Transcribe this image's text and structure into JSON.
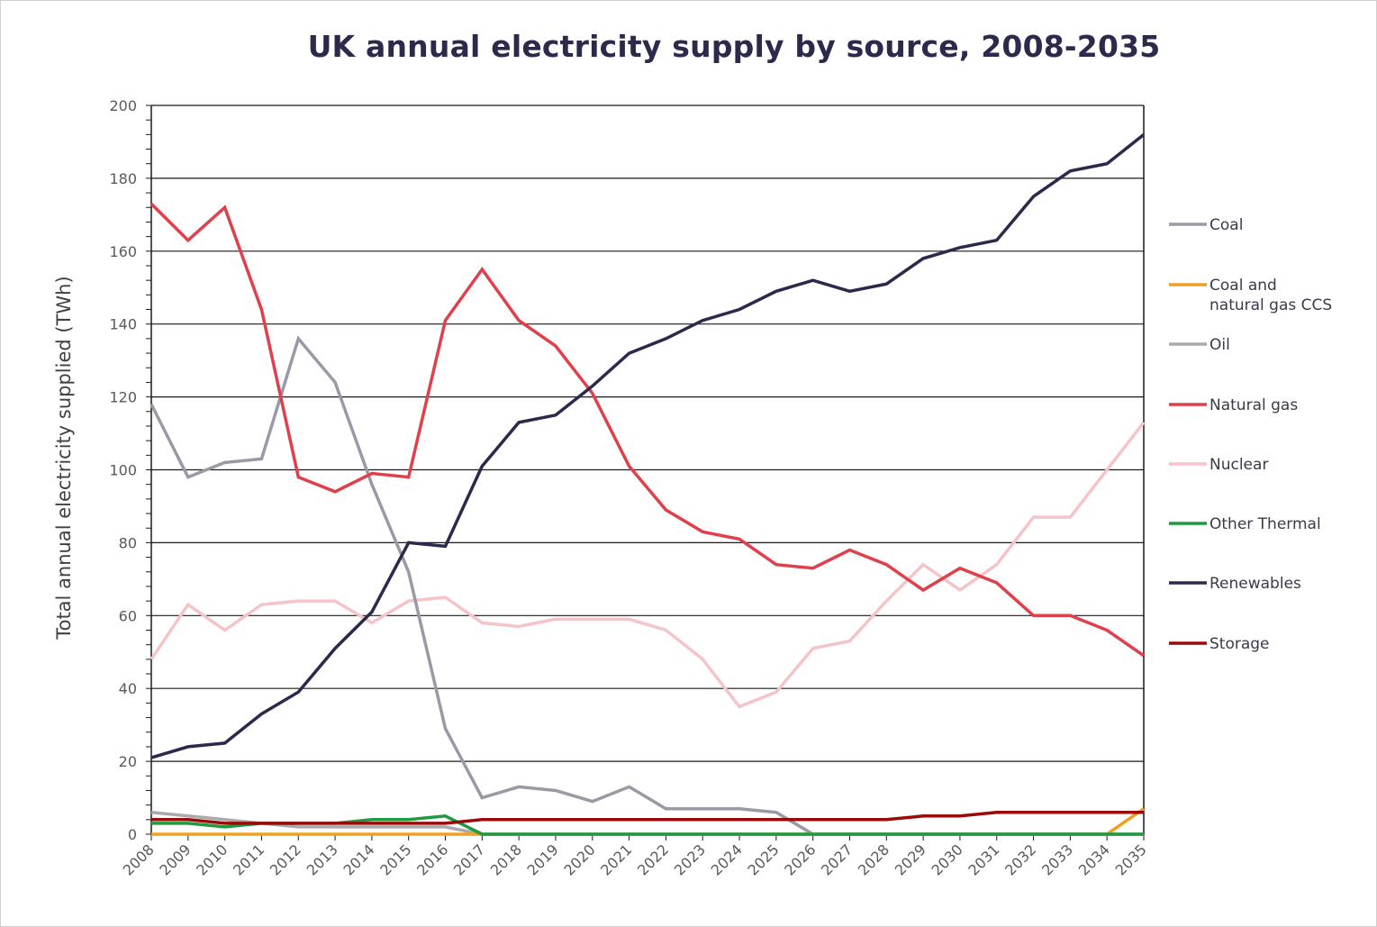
{
  "chart_data": {
    "type": "line",
    "title": "UK annual electricity supply by source, 2008-2035",
    "xlabel": "",
    "ylabel": "Total annual electricity supplied (TWh)",
    "ylim": [
      0,
      200
    ],
    "yticks": [
      0,
      20,
      40,
      60,
      80,
      100,
      120,
      140,
      160,
      180,
      200
    ],
    "grid": true,
    "legend_position": "right",
    "x": [
      "2008",
      "2009",
      "2010",
      "2011",
      "2012",
      "2013",
      "2014",
      "2015",
      "2016",
      "2017",
      "2018",
      "2019",
      "2020",
      "2021",
      "2022",
      "2023",
      "2024",
      "2025",
      "2026",
      "2027",
      "2028",
      "2029",
      "2030",
      "2031",
      "2032",
      "2033",
      "2034",
      "2035"
    ],
    "series": [
      {
        "name": "Coal",
        "color": "#9a9aa6",
        "values": [
          118,
          98,
          102,
          103,
          136,
          124,
          96,
          72,
          29,
          10,
          13,
          12,
          9,
          13,
          7,
          7,
          7,
          6,
          0,
          0,
          0,
          0,
          0,
          0,
          0,
          0,
          0,
          0
        ]
      },
      {
        "name": "Coal and natural gas CCS",
        "color": "#f0a020",
        "values": [
          0,
          0,
          0,
          0,
          0,
          0,
          0,
          0,
          0,
          0,
          0,
          0,
          0,
          0,
          0,
          0,
          0,
          0,
          0,
          0,
          0,
          0,
          0,
          0,
          0,
          0,
          0,
          7
        ]
      },
      {
        "name": "Oil",
        "color": "#aaaaaa",
        "values": [
          6,
          5,
          4,
          3,
          2,
          2,
          2,
          2,
          2,
          0,
          0,
          0,
          0,
          0,
          0,
          0,
          0,
          0,
          0,
          0,
          0,
          0,
          0,
          0,
          0,
          0,
          0,
          0
        ]
      },
      {
        "name": "Natural gas",
        "color": "#e0404c",
        "values": [
          173,
          163,
          172,
          144,
          98,
          94,
          99,
          98,
          141,
          155,
          141,
          134,
          121,
          101,
          89,
          83,
          81,
          74,
          73,
          78,
          74,
          67,
          73,
          69,
          60,
          60,
          56,
          49
        ]
      },
      {
        "name": "Nuclear",
        "color": "#f4c4c8",
        "values": [
          48,
          63,
          56,
          63,
          64,
          64,
          58,
          64,
          65,
          58,
          57,
          59,
          59,
          59,
          56,
          48,
          35,
          39,
          51,
          53,
          64,
          74,
          67,
          74,
          87,
          87,
          100,
          113
        ]
      },
      {
        "name": "Other Thermal",
        "color": "#1e9a40",
        "values": [
          3,
          3,
          2,
          3,
          3,
          3,
          4,
          4,
          5,
          0,
          0,
          0,
          0,
          0,
          0,
          0,
          0,
          0,
          0,
          0,
          0,
          0,
          0,
          0,
          0,
          0,
          0,
          0
        ]
      },
      {
        "name": "Renewables",
        "color": "#2b2a4c",
        "values": [
          21,
          24,
          25,
          33,
          39,
          51,
          61,
          80,
          79,
          101,
          113,
          115,
          123,
          132,
          136,
          141,
          144,
          149,
          152,
          149,
          151,
          158,
          161,
          163,
          175,
          182,
          184,
          192
        ]
      },
      {
        "name": "Storage",
        "color": "#9a0a0a",
        "values": [
          4,
          4,
          3,
          3,
          3,
          3,
          3,
          3,
          3,
          4,
          4,
          4,
          4,
          4,
          4,
          4,
          4,
          4,
          4,
          4,
          4,
          5,
          5,
          6,
          6,
          6,
          6,
          6
        ]
      }
    ],
    "legend": [
      {
        "label_lines": [
          "Coal"
        ]
      },
      {
        "label_lines": [
          "Coal and",
          "natural gas CCS"
        ]
      },
      {
        "label_lines": [
          "Oil"
        ]
      },
      {
        "label_lines": [
          "Natural gas"
        ]
      },
      {
        "label_lines": [
          "Nuclear"
        ]
      },
      {
        "label_lines": [
          "Other Thermal"
        ]
      },
      {
        "label_lines": [
          "Renewables"
        ]
      },
      {
        "label_lines": [
          "Storage"
        ]
      }
    ]
  }
}
